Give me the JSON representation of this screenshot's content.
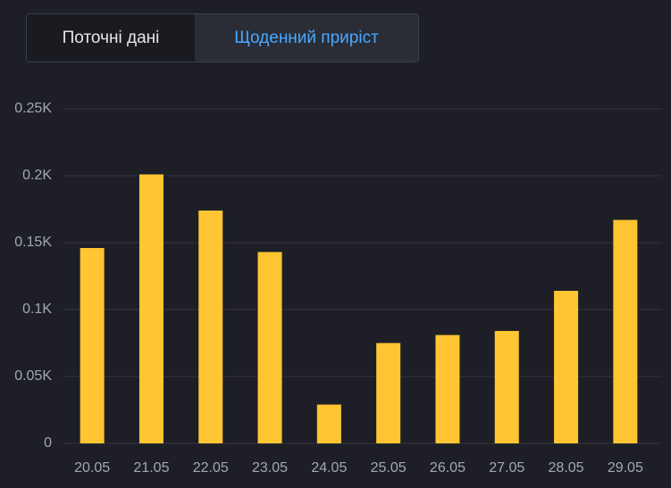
{
  "tabs": [
    "Поточні дані",
    "Щоденний приріст"
  ],
  "chart_data": {
    "type": "bar",
    "categories": [
      "20.05",
      "21.05",
      "22.05",
      "23.05",
      "24.05",
      "25.05",
      "26.05",
      "27.05",
      "28.05",
      "29.05"
    ],
    "values": [
      146,
      201,
      174,
      143,
      29,
      75,
      81,
      84,
      114,
      167
    ],
    "color": "#ffc533",
    "ylim": [
      0,
      250
    ],
    "yticks": [
      0,
      {
        "value": 50,
        "label": "0.05K"
      },
      {
        "value": 100,
        "label": "0.1K"
      },
      {
        "value": 150,
        "label": "0.15K"
      },
      {
        "value": 200,
        "label": "0.2K"
      },
      {
        "value": 250,
        "label": "0.25K"
      }
    ],
    "grid": true
  }
}
